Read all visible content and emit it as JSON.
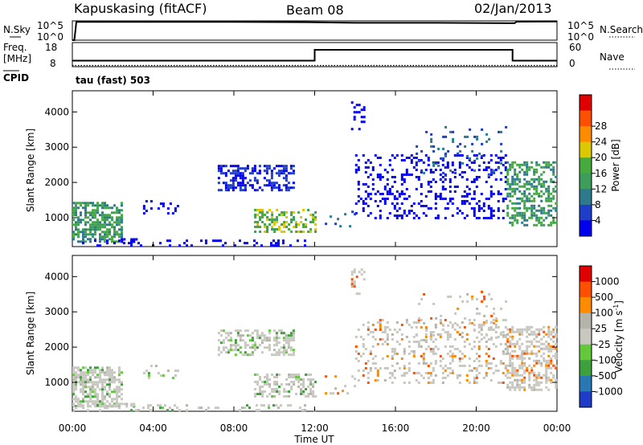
{
  "chart_data": [
    {
      "type": "line",
      "title": "",
      "left_label": "N.Sky",
      "right_label": "N.Search",
      "ticks_left": [
        "10^5",
        "10^0"
      ],
      "ticks_right": [
        "10^5",
        "10^0"
      ],
      "series": [
        {
          "name": "N.Sky",
          "style": "solid",
          "x": [
            0,
            0.1,
            0.2,
            4,
            8,
            12,
            14,
            18,
            21.9,
            22,
            24
          ],
          "y": [
            0,
            0,
            0.95,
            0.95,
            0.95,
            0.93,
            0.9,
            0.9,
            0.88,
            0.96,
            0.97
          ]
        },
        {
          "name": "N.Search",
          "style": "dotted",
          "x": [],
          "y": []
        }
      ]
    },
    {
      "type": "line",
      "left_label": "Freq. [MHz]",
      "right_label": "Nave",
      "ticks_left": [
        "18",
        "8"
      ],
      "ticks_right": [
        "60",
        "0"
      ],
      "series": [
        {
          "name": "Freq",
          "style": "solid",
          "x": [
            0,
            12,
            12,
            21.8,
            21.8,
            24
          ],
          "y": [
            10.5,
            10.5,
            15,
            15,
            10.5,
            10.5
          ]
        },
        {
          "name": "Nave",
          "style": "dotted",
          "x": [
            0,
            24
          ],
          "y": [
            8.5,
            8.5
          ]
        }
      ]
    },
    {
      "type": "text",
      "left_label": "CPID",
      "value": "tau (fast) 503"
    },
    {
      "type": "heatmap",
      "title": "Power [dB]",
      "ylabel": "Slant Range [km]",
      "xlim": [
        0,
        24
      ],
      "ylim": [
        180,
        4600
      ],
      "yticks": [
        1000,
        2000,
        3000,
        4000
      ],
      "colorbar": {
        "label": "Power [dB]",
        "ticks": [
          "4",
          "8",
          "12",
          "16",
          "20",
          "24",
          "28"
        ],
        "colors": [
          "#0000ee",
          "#1f3ec8",
          "#2d7a8c",
          "#3c9e5a",
          "#46aa3c",
          "#dcc800",
          "#ff8c00",
          "#ff5000",
          "#e00000"
        ]
      }
    },
    {
      "type": "heatmap",
      "title": "Velocity [m s^-1]",
      "ylabel": "Slant Range [km]",
      "xlabel": "Time UT",
      "xlim": [
        0,
        24
      ],
      "ylim": [
        180,
        4600
      ],
      "yticks": [
        1000,
        2000,
        3000,
        4000
      ],
      "xticks": [
        "00:00",
        "04:00",
        "08:00",
        "12:00",
        "16:00",
        "20:00",
        "00:00"
      ],
      "colorbar": {
        "label": "Velocity [m s^-1]",
        "ticks": [
          "1000",
          "500",
          "100",
          "25",
          "-25",
          "-100",
          "-500",
          "-1000"
        ],
        "colors": [
          "#1e3cc8",
          "#2878b4",
          "#3ca03c",
          "#64c83c",
          "#c8c8c0",
          "#b4b4aa",
          "#ff8c00",
          "#ff5000",
          "#e00000"
        ]
      }
    }
  ],
  "header": {
    "station": "Kapuskasing (fitACF)",
    "beam": "Beam 08",
    "date": "02/Jan/2013"
  },
  "labels": {
    "nsky": "N.Sky",
    "nsearch": "N.Search",
    "freq": "Freq.",
    "mhz": "[MHz]",
    "nave": "Nave",
    "cpid": "CPID",
    "cpid_value": "tau (fast) 503",
    "slant": "Slant Range [km]",
    "time": "Time UT",
    "power": "Power [dB]",
    "velocity": "Velocity [m s",
    "velocity_sup": "-1",
    "velocity_end": "]"
  },
  "ticks": {
    "noise_left": [
      "10^5",
      "10^0"
    ],
    "noise_right": [
      "10^5",
      "10^0"
    ],
    "freq_left": [
      "18",
      "8"
    ],
    "freq_right": [
      "60",
      "0"
    ],
    "range": [
      "1000",
      "2000",
      "3000",
      "4000"
    ],
    "time": [
      "00:00",
      "04:00",
      "08:00",
      "12:00",
      "16:00",
      "20:00",
      "00:00"
    ],
    "power": [
      "4",
      "8",
      "12",
      "16",
      "20",
      "24",
      "28"
    ],
    "velocity": [
      "1000",
      "500",
      "100",
      "25",
      "-25",
      "-100",
      "-500",
      "-1000"
    ]
  },
  "colors": {
    "power": [
      "#0000ee",
      "#1f3ec8",
      "#2d7a8c",
      "#3c9e5a",
      "#46aa3c",
      "#dcc800",
      "#ff8c00",
      "#ff5000",
      "#e00000"
    ],
    "velocity": [
      "#e00000",
      "#ff5000",
      "#ff8c00",
      "#b4b4aa",
      "#c8c8c0",
      "#64c83c",
      "#3ca03c",
      "#2878b4",
      "#1e3cc8"
    ]
  }
}
